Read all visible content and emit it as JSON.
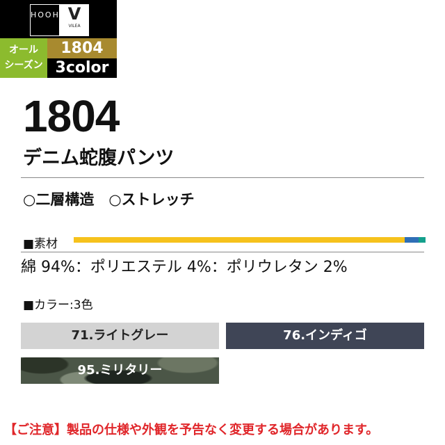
{
  "badge": {
    "brand_logo_1": "HOOH",
    "brand_logo_2_mark": "V",
    "brand_logo_2_text": "VILEA",
    "season": [
      "オール",
      "シーズン"
    ],
    "product_number": "1804",
    "color_count": "3color",
    "colors": {
      "season_bg": "#8cbb2e",
      "number_bg": "#a88a2f"
    }
  },
  "product": {
    "number": "1804",
    "name": "デニム蛇腹パンツ",
    "features": "○二層構造　○ストレッチ"
  },
  "material": {
    "label": "■素材",
    "composition": [
      {
        "name": "綿",
        "percent": 94,
        "color": "#f6c21c"
      },
      {
        "name": "ポリエステル",
        "percent": 4,
        "color": "#2f6fb6"
      },
      {
        "name": "ポリウレタン",
        "percent": 2,
        "color": "#14a08c"
      }
    ],
    "text": "綿 94%：ポリエステル 4%：ポリウレタン 2%"
  },
  "colors": {
    "label": "■カラー:3色",
    "items": [
      {
        "label": "71.ライトグレー",
        "swatch": "#d3d3d3"
      },
      {
        "label": "76.インディゴ",
        "swatch": "#3f4556"
      },
      {
        "label": "95.ミリタリー",
        "swatch": "camo"
      }
    ]
  },
  "notice": "【ご注意】製品の仕様や外観を予告なく変更する場合があります。"
}
